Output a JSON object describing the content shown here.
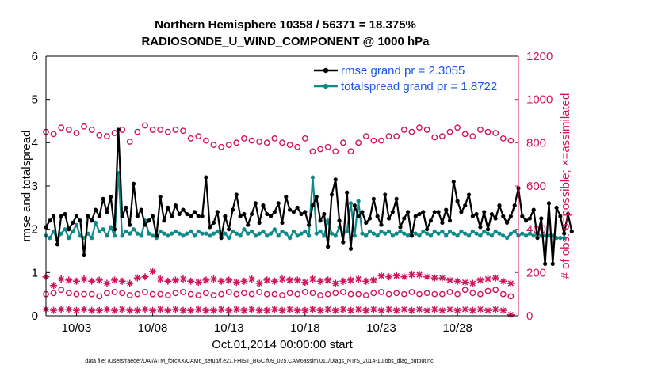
{
  "chart_data": {
    "type": "line",
    "title": "Northern Hemisphere 10358 / 56371 = 18.375%",
    "subtitle": "RADIOSONDE_U_WIND_COMPONENT @ 1000 hPa",
    "xlabel": "Oct.01,2014 00:00:00 start",
    "ylabel": "rmse and totalspread",
    "y2label": "# of obs: o=possible; ×=assimilated",
    "xlim": [
      1,
      32
    ],
    "ylim": [
      0,
      6
    ],
    "y2lim": [
      0,
      1200
    ],
    "x_ticks": [
      3,
      8,
      13,
      18,
      23,
      28
    ],
    "x_tick_labels": [
      "10/03",
      "10/08",
      "10/13",
      "10/18",
      "10/23",
      "10/28"
    ],
    "y_ticks": [
      0,
      1,
      2,
      3,
      4,
      5,
      6
    ],
    "y2_ticks": [
      0,
      200,
      400,
      600,
      800,
      1000,
      1200
    ],
    "legend": {
      "position": "top-right",
      "entries": [
        "rmse grand pr = 2.3055",
        "totalspread grand pr = 1.8722"
      ]
    },
    "footnote": "data file: /Users/raeder/DAI/ATM_forcXX/CAM6_setup/f.e21.FHIST_BGC.f09_025.CAM6assim.011/Diags_NTrS_2014-10/obs_diag_output.nc",
    "colors": {
      "rmse": "#000000",
      "totalspread": "#0e8a8a",
      "obs": "#d0135b",
      "legend_text": "#1a55e6"
    },
    "series": [
      {
        "name": "rmse",
        "axis": "left",
        "x_start": 1,
        "x_step": 0.25,
        "values": [
          2.05,
          2.2,
          2.3,
          1.65,
          2.3,
          2.35,
          2.0,
          2.15,
          2.3,
          2.2,
          1.4,
          2.3,
          2.2,
          2.45,
          2.3,
          2.7,
          2.4,
          2.75,
          2.0,
          4.3,
          2.3,
          2.5,
          2.1,
          3.05,
          2.3,
          2.45,
          2.1,
          2.2,
          2.3,
          1.85,
          2.75,
          2.2,
          2.5,
          2.3,
          2.55,
          2.35,
          2.45,
          2.35,
          2.3,
          2.4,
          2.3,
          2.3,
          3.2,
          2.05,
          2.15,
          2.4,
          1.8,
          2.3,
          2.0,
          2.45,
          2.8,
          2.3,
          2.35,
          2.1,
          2.35,
          2.6,
          2.15,
          2.55,
          2.35,
          2.3,
          2.4,
          2.6,
          2.15,
          2.75,
          2.45,
          2.4,
          2.5,
          2.35,
          2.4,
          2.1,
          2.55,
          2.75,
          2.2,
          2.35,
          1.6,
          2.8,
          3.15,
          2.2,
          1.7,
          2.85,
          1.55,
          2.55,
          2.3,
          2.4,
          2.15,
          2.25,
          2.7,
          2.3,
          2.1,
          2.8,
          2.25,
          2.4,
          2.7,
          2.05,
          2.25,
          2.4,
          1.85,
          2.3,
          2.35,
          2.4,
          2.0,
          2.2,
          2.4,
          2.4,
          2.15,
          2.45,
          2.2,
          3.1,
          2.65,
          2.4,
          2.55,
          2.8,
          2.3,
          2.35,
          2.05,
          2.4,
          2.0,
          2.35,
          2.25,
          2.55,
          2.3,
          2.15,
          2.3,
          2.55,
          2.95,
          2.3,
          2.2,
          2.25,
          2.45,
          1.8,
          2.25,
          1.2,
          2.6,
          1.2,
          2.5,
          2.3,
          1.9,
          2.35,
          1.95
        ]
      },
      {
        "name": "totalspread",
        "axis": "left",
        "x_start": 1,
        "x_step": 0.25,
        "values": [
          1.85,
          1.8,
          1.95,
          1.75,
          1.9,
          2.0,
          1.8,
          1.95,
          2.1,
          1.85,
          1.8,
          1.9,
          1.8,
          2.15,
          1.95,
          2.0,
          1.85,
          2.05,
          1.85,
          3.3,
          1.85,
          1.95,
          1.9,
          2.0,
          1.9,
          1.85,
          2.2,
          1.9,
          1.85,
          1.8,
          1.95,
          1.9,
          1.85,
          1.9,
          1.95,
          1.9,
          1.85,
          1.9,
          1.95,
          1.85,
          1.95,
          1.9,
          1.9,
          1.85,
          1.9,
          1.95,
          1.85,
          1.9,
          1.8,
          1.95,
          1.9,
          1.85,
          2.0,
          1.9,
          1.95,
          1.85,
          1.9,
          1.95,
          1.85,
          1.9,
          2.0,
          1.85,
          1.95,
          1.9,
          1.8,
          1.95,
          1.85,
          1.9,
          1.95,
          1.85,
          3.2,
          1.9,
          1.95,
          1.85,
          2.2,
          1.9,
          1.85,
          2.05,
          1.9,
          1.95,
          2.6,
          1.85,
          2.65,
          1.9,
          1.85,
          1.95,
          1.9,
          1.85,
          1.95,
          1.9,
          1.95,
          1.85,
          1.9,
          1.95,
          1.9,
          1.85,
          1.95,
          1.9,
          1.85,
          1.95,
          1.9,
          1.85,
          1.95,
          1.9,
          1.95,
          1.85,
          1.95,
          1.9,
          1.85,
          1.95,
          1.9,
          1.85,
          1.95,
          1.9,
          1.85,
          1.95,
          1.9,
          1.85,
          1.95,
          1.9,
          1.85,
          1.8,
          1.9,
          1.95,
          1.85,
          1.9,
          1.85,
          1.9,
          1.85,
          1.9,
          1.85,
          1.85,
          1.85,
          1.85,
          1.8,
          1.8,
          1.8
        ]
      },
      {
        "name": "obs_possible_upper",
        "axis": "right",
        "marker": "o",
        "x_start": 1,
        "x_step": 0.5,
        "values": [
          850,
          840,
          870,
          860,
          845,
          875,
          860,
          835,
          830,
          845,
          860,
          805,
          850,
          880,
          860,
          860,
          850,
          860,
          855,
          820,
          830,
          810,
          790,
          780,
          790,
          800,
          820,
          810,
          805,
          800,
          820,
          800,
          790,
          780,
          820,
          760,
          770,
          780,
          760,
          800,
          760,
          800,
          830,
          810,
          810,
          830,
          830,
          860,
          850,
          870,
          860,
          825,
          830,
          850,
          870,
          840,
          830,
          860,
          850,
          845,
          820,
          810
        ]
      },
      {
        "name": "obs_assimilated_upper",
        "axis": "right",
        "marker": "x",
        "x_start": 1,
        "x_step": 0.5,
        "values": [
          180,
          140,
          170,
          165,
          160,
          170,
          160,
          165,
          150,
          165,
          160,
          150,
          175,
          180,
          205,
          170,
          160,
          165,
          170,
          160,
          155,
          165,
          170,
          160,
          165,
          155,
          160,
          170,
          150,
          165,
          160,
          170,
          165,
          165,
          155,
          170,
          160,
          165,
          150,
          160,
          165,
          170,
          160,
          165,
          185,
          180,
          185,
          180,
          190,
          190,
          180,
          175,
          175,
          165,
          160,
          155,
          150,
          165,
          170,
          175,
          160,
          150
        ]
      },
      {
        "name": "obs_possible_lower",
        "axis": "right",
        "marker": "o",
        "x_start": 1,
        "x_step": 0.5,
        "values": [
          100,
          105,
          120,
          105,
          100,
          100,
          100,
          90,
          105,
          110,
          105,
          95,
          100,
          110,
          100,
          100,
          95,
          105,
          110,
          100,
          95,
          105,
          95,
          100,
          110,
          100,
          105,
          100,
          110,
          100,
          100,
          95,
          105,
          100,
          110,
          105,
          95,
          100,
          105,
          110,
          100,
          100,
          95,
          105,
          110,
          100,
          105,
          100,
          110,
          100,
          105,
          100,
          100,
          110,
          100,
          120,
          105,
          100,
          115,
          120,
          100,
          90
        ]
      },
      {
        "name": "obs_assimilated_lower",
        "axis": "right",
        "marker": "x",
        "x_start": 1,
        "x_step": 0.5,
        "values": [
          30,
          25,
          30,
          30,
          25,
          30,
          25,
          25,
          30,
          25,
          30,
          25,
          25,
          30,
          25,
          30,
          25,
          30,
          25,
          25,
          30,
          25,
          25,
          30,
          25,
          30,
          25,
          30,
          25,
          25,
          30,
          25,
          30,
          25,
          25,
          30,
          25,
          30,
          25,
          30,
          25,
          30,
          25,
          30,
          25,
          30,
          25,
          30,
          25,
          30,
          25,
          30,
          25,
          30,
          25,
          30,
          25,
          30,
          25,
          30,
          25,
          5
        ]
      }
    ]
  }
}
